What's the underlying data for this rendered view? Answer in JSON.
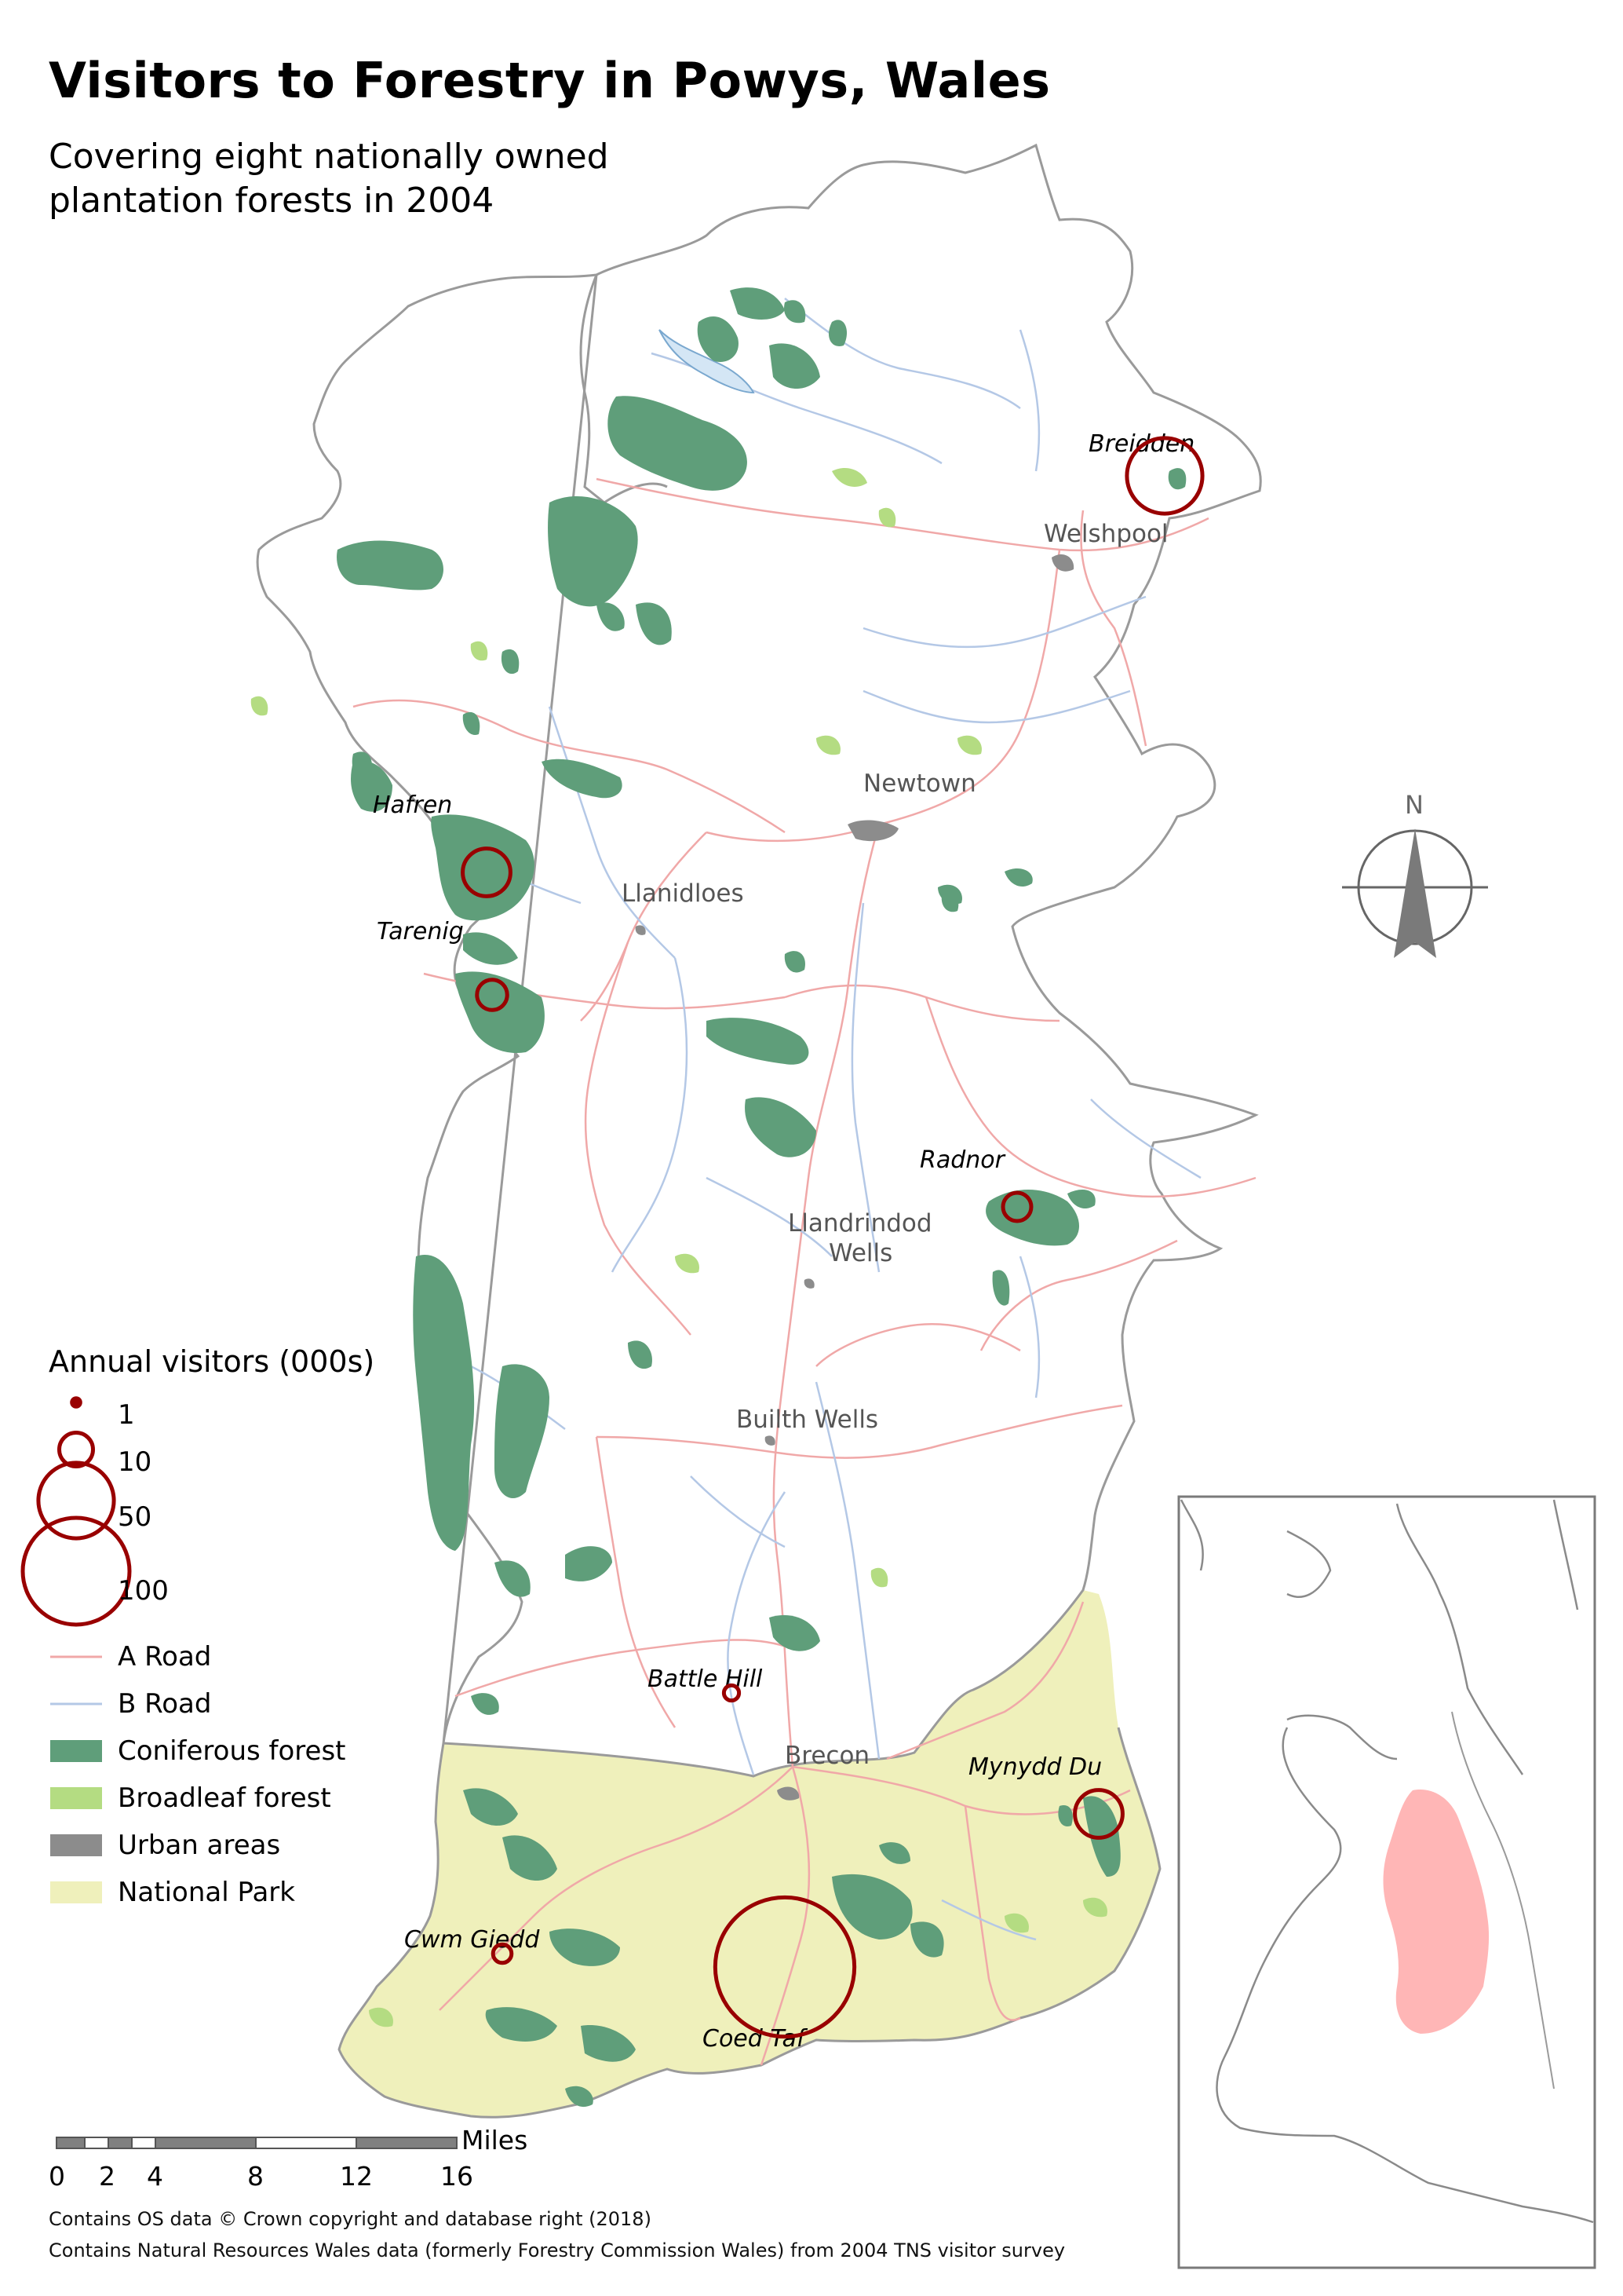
{
  "title": "Visitors to Forestry in Powys, Wales",
  "subtitle_line1": "Covering eight nationally owned",
  "subtitle_line2": "plantation forests in 2004",
  "compass_label": "N",
  "colors": {
    "coniferous": "#5f9e7a",
    "broadleaf": "#b4dc82",
    "urban": "#8c8c8c",
    "national_park": "#eff0bb",
    "a_road": "#f0a8a8",
    "b_road": "#b4c8e6",
    "boundary": "#9a9a9a",
    "visitor_circle": "#990000",
    "inset_highlight": "#ffb6b6"
  },
  "towns": [
    {
      "name": "Welshpool"
    },
    {
      "name": "Newtown"
    },
    {
      "name": "Llanidloes"
    },
    {
      "name": "Llandrindod"
    },
    {
      "name": "Wells"
    },
    {
      "name": "Builth Wells"
    },
    {
      "name": "Brecon"
    }
  ],
  "forests": [
    {
      "name": "Breidden",
      "visitors_000s": 50
    },
    {
      "name": "Hafren",
      "visitors_000s": 20
    },
    {
      "name": "Tarenig",
      "visitors_000s": 8
    },
    {
      "name": "Radnor",
      "visitors_000s": 7
    },
    {
      "name": "Battle Hill",
      "visitors_000s": 2
    },
    {
      "name": "Mynydd Du",
      "visitors_000s": 20
    },
    {
      "name": "Cwm Giedd",
      "visitors_000s": 3
    },
    {
      "name": "Coed Taf",
      "visitors_000s": 170
    }
  ],
  "legend": {
    "title": "Annual visitors (000s)",
    "sizes": [
      {
        "label": "1",
        "value": 1
      },
      {
        "label": "10",
        "value": 10
      },
      {
        "label": "50",
        "value": 50
      },
      {
        "label": "100",
        "value": 100
      }
    ],
    "a_road": "A Road",
    "b_road": "B Road",
    "coniferous": "Coniferous forest",
    "broadleaf": "Broadleaf forest",
    "urban": "Urban areas",
    "national_park": "National Park"
  },
  "scale": {
    "unit": "Miles",
    "ticks": [
      "0",
      "2",
      "4",
      "8",
      "12",
      "16"
    ]
  },
  "credits": {
    "line1": "Contains OS data © Crown copyright and database right (2018)",
    "line2": "Contains Natural Resources Wales data (formerly Forestry Commission Wales) from 2004 TNS visitor survey"
  }
}
